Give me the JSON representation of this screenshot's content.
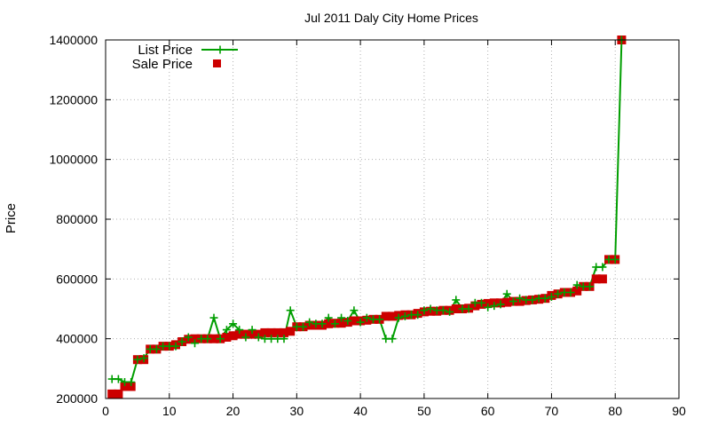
{
  "chart_data": {
    "type": "line",
    "title": "Jul 2011 Daly City Home Prices",
    "xlabel": "",
    "ylabel": "Price",
    "xlim": [
      0,
      90
    ],
    "ylim": [
      200000,
      1400000
    ],
    "xticks": [
      0,
      10,
      20,
      30,
      40,
      50,
      60,
      70,
      80,
      90
    ],
    "yticks": [
      200000,
      400000,
      600000,
      800000,
      1000000,
      1200000,
      1400000
    ],
    "grid": true,
    "legend_position": "top-left",
    "colors": {
      "list": "#009e00",
      "sale": "#cc0000"
    },
    "series": [
      {
        "name": "List Price",
        "style": "line-plus",
        "x": [
          1,
          2,
          3,
          4,
          5,
          6,
          7,
          8,
          9,
          10,
          11,
          12,
          13,
          14,
          15,
          16,
          17,
          18,
          19,
          20,
          21,
          22,
          23,
          24,
          25,
          26,
          27,
          28,
          29,
          30,
          31,
          32,
          33,
          34,
          35,
          36,
          37,
          38,
          39,
          40,
          41,
          42,
          43,
          44,
          45,
          46,
          47,
          48,
          49,
          50,
          51,
          52,
          53,
          54,
          55,
          56,
          57,
          58,
          59,
          60,
          61,
          62,
          63,
          64,
          65,
          66,
          67,
          68,
          69,
          70,
          71,
          72,
          73,
          74,
          75,
          76,
          77,
          78,
          79,
          80,
          81
        ],
        "y": [
          265000,
          265000,
          255000,
          255000,
          330000,
          335000,
          365000,
          365000,
          375000,
          375000,
          375000,
          390000,
          405000,
          385000,
          400000,
          400000,
          470000,
          400000,
          430000,
          450000,
          430000,
          405000,
          430000,
          405000,
          400000,
          400000,
          400000,
          400000,
          495000,
          440000,
          440000,
          455000,
          450000,
          450000,
          470000,
          450000,
          470000,
          460000,
          495000,
          455000,
          470000,
          465000,
          465000,
          400000,
          400000,
          470000,
          475000,
          480000,
          480000,
          495000,
          500000,
          495000,
          495000,
          490000,
          530000,
          500000,
          500000,
          520000,
          520000,
          505000,
          510000,
          515000,
          550000,
          525000,
          535000,
          530000,
          530000,
          535000,
          535000,
          540000,
          550000,
          555000,
          555000,
          580000,
          575000,
          575000,
          640000,
          640000,
          665000,
          665000,
          1400000
        ]
      },
      {
        "name": "Sale Price",
        "style": "square",
        "x": [
          1,
          2,
          3,
          4,
          5,
          6,
          7,
          8,
          9,
          10,
          11,
          12,
          13,
          14,
          15,
          16,
          17,
          18,
          19,
          20,
          21,
          22,
          23,
          24,
          25,
          26,
          27,
          28,
          29,
          30,
          31,
          32,
          33,
          34,
          35,
          36,
          37,
          38,
          39,
          40,
          41,
          42,
          43,
          44,
          45,
          46,
          47,
          48,
          49,
          50,
          51,
          52,
          53,
          54,
          55,
          56,
          57,
          58,
          59,
          60,
          61,
          62,
          63,
          64,
          65,
          66,
          67,
          68,
          69,
          70,
          71,
          72,
          73,
          74,
          75,
          76,
          77,
          78,
          79,
          80,
          81
        ],
        "y": [
          215000,
          215000,
          240000,
          240000,
          330000,
          330000,
          365000,
          365000,
          375000,
          375000,
          380000,
          390000,
          398000,
          400000,
          400000,
          400000,
          400000,
          400000,
          405000,
          410000,
          415000,
          415000,
          415000,
          415000,
          420000,
          420000,
          420000,
          420000,
          425000,
          440000,
          440000,
          445000,
          445000,
          445000,
          450000,
          452000,
          452000,
          455000,
          460000,
          460000,
          462000,
          465000,
          465000,
          475000,
          475000,
          478000,
          480000,
          480000,
          485000,
          490000,
          492000,
          492000,
          495000,
          495000,
          500000,
          500000,
          502000,
          510000,
          515000,
          518000,
          520000,
          520000,
          522000,
          525000,
          525000,
          528000,
          530000,
          532000,
          535000,
          545000,
          550000,
          555000,
          555000,
          560000,
          575000,
          575000,
          600000,
          600000,
          665000,
          665000,
          1400000
        ]
      }
    ]
  }
}
